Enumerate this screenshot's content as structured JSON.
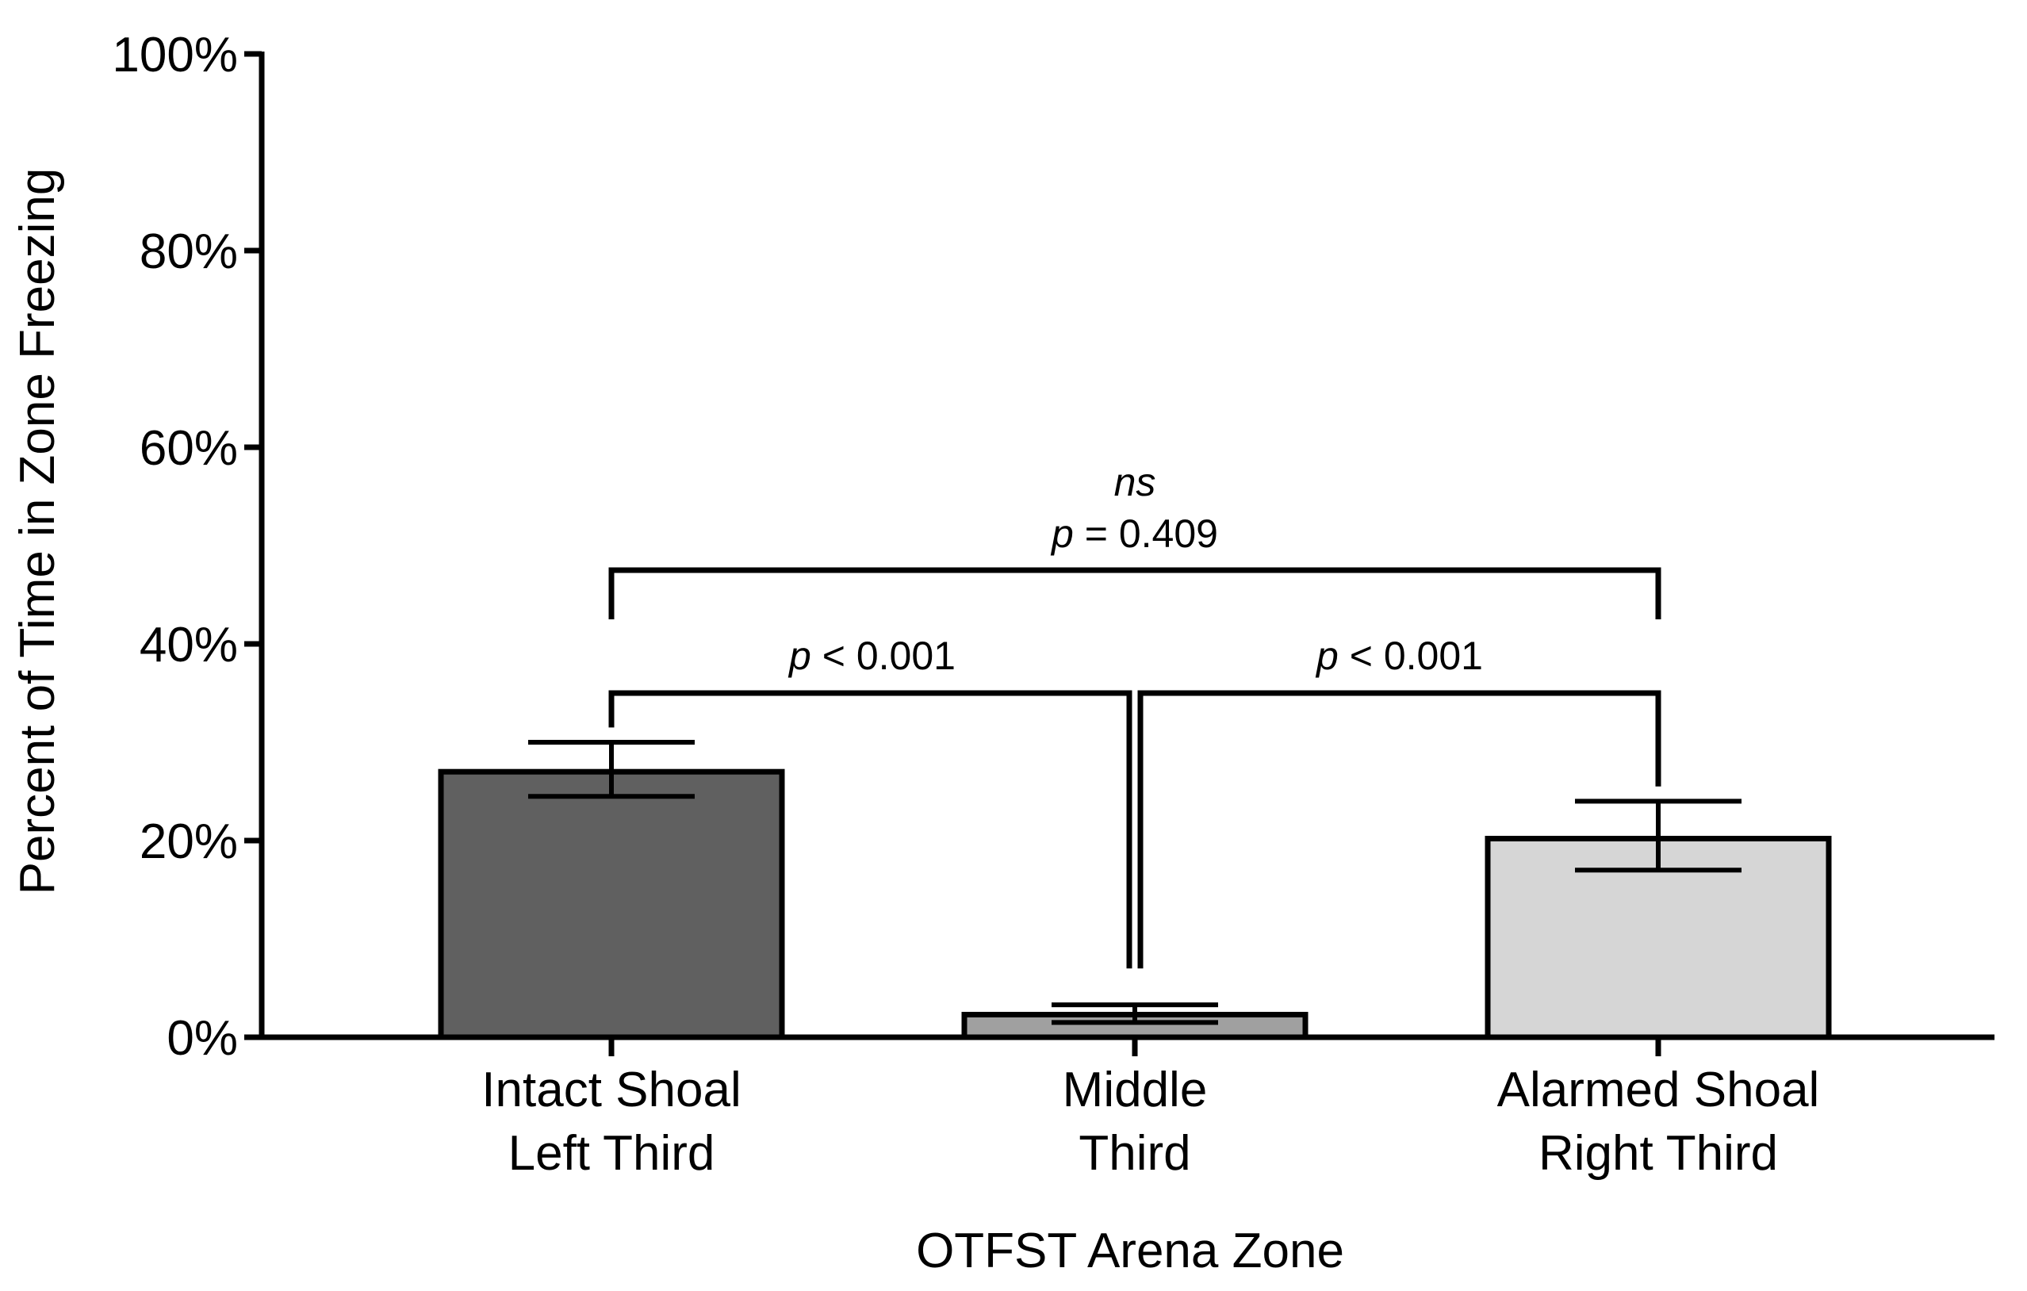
{
  "chart_data": {
    "type": "bar",
    "title": "",
    "xlabel": "OTFST Arena Zone",
    "ylabel": "Percent of Time in Zone Freezing",
    "ylim": [
      0,
      100
    ],
    "yticks": [
      0,
      20,
      40,
      60,
      80,
      100
    ],
    "ytick_labels": [
      "0%",
      "20%",
      "40%",
      "60%",
      "80%",
      "100%"
    ],
    "grid": false,
    "legend": "none",
    "categories": [
      [
        "Intact Shoal",
        "Left Third"
      ],
      [
        "Middle",
        "Third"
      ],
      [
        "Alarmed Shoal",
        "Right Third"
      ]
    ],
    "values": [
      27,
      2.3,
      20.2
    ],
    "error_low": [
      24.5,
      1.5,
      17.0
    ],
    "error_high": [
      30.0,
      3.3,
      24.0
    ],
    "colors": [
      "#606060",
      "#a0a0a0",
      "#d6d6d6"
    ],
    "comparisons": [
      {
        "from": 0,
        "to": 1,
        "label_italic": "p",
        "label_rest": " < 0.001"
      },
      {
        "from": 1,
        "to": 2,
        "label_italic": "p",
        "label_rest": " < 0.001"
      },
      {
        "from": 0,
        "to": 2,
        "label_top": "ns",
        "label_italic": "p",
        "label_rest": " = 0.409"
      }
    ]
  }
}
